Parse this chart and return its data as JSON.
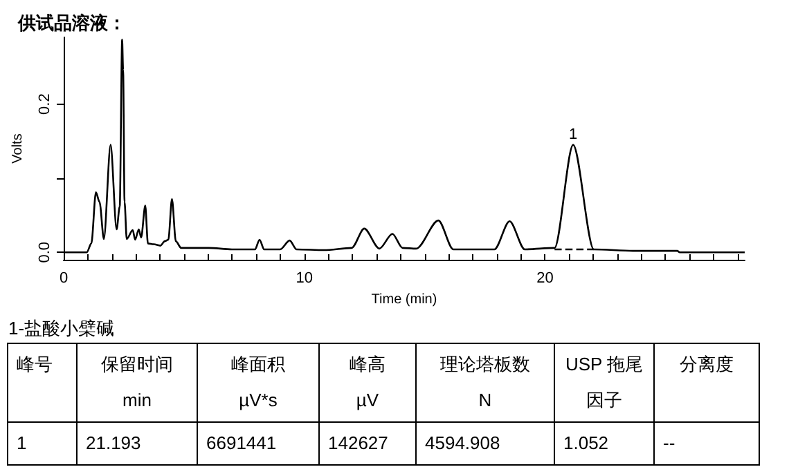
{
  "chart_data": {
    "type": "line",
    "title": "供试品溶液：",
    "xlabel": "Time (min)",
    "ylabel": "Volts",
    "xlim": [
      0,
      28.3
    ],
    "xticks": [
      0,
      {
        "value": 1,
        "label": null
      },
      {
        "value": 2,
        "label": null
      },
      {
        "value": 3,
        "label": null
      },
      {
        "value": 4,
        "label": null
      },
      {
        "value": 5,
        "label": null
      },
      {
        "value": 6,
        "label": null
      },
      {
        "value": 7,
        "label": null
      },
      {
        "value": 8,
        "label": null
      },
      {
        "value": 9,
        "label": null
      },
      10,
      {
        "value": 11,
        "label": null
      },
      {
        "value": 12,
        "label": null
      },
      {
        "value": 13,
        "label": null
      },
      {
        "value": 14,
        "label": null
      },
      {
        "value": 15,
        "label": null
      },
      {
        "value": 16,
        "label": null
      },
      {
        "value": 17,
        "label": null
      },
      {
        "value": 18,
        "label": null
      },
      {
        "value": 19,
        "label": null
      },
      20,
      {
        "value": 21,
        "label": null
      },
      {
        "value": 22,
        "label": null
      },
      {
        "value": 23,
        "label": null
      },
      {
        "value": 24,
        "label": null
      },
      {
        "value": 25,
        "label": null
      },
      {
        "value": 26,
        "label": null
      },
      {
        "value": 27,
        "label": null
      },
      {
        "value": 28,
        "label": null
      }
    ],
    "ylim": [
      -0.01,
      0.29
    ],
    "yticks": [
      {
        "value": 0,
        "label": "0.0"
      },
      {
        "value": 0.1,
        "label": null
      },
      {
        "value": 0.2,
        "label": "0.2"
      }
    ],
    "grid": false,
    "marker": "none",
    "series": [
      {
        "color": "#000000",
        "line_style": "solid",
        "x": [
          0,
          0.96,
          1.15,
          1.34,
          1.49,
          1.67,
          1.95,
          2.2,
          2.33,
          2.43,
          2.47,
          2.53,
          2.62,
          2.87,
          2.97,
          3.12,
          3.22,
          3.39,
          3.5,
          3.74,
          4.02,
          4.2,
          4.35,
          4.5,
          4.66,
          4.88,
          6.03,
          6.99,
          7.95,
          8.14,
          8.33,
          9.0,
          9.39,
          9.68,
          10.82,
          11.97,
          12.49,
          13.12,
          13.66,
          14.08,
          14.65,
          15.57,
          16.19,
          17.9,
          18.53,
          19.16,
          20.4,
          21.17,
          22.03,
          23.65,
          25.5,
          25.6,
          28.3
        ],
        "values": [
          0,
          0,
          0.012,
          0.081,
          0.068,
          0.018,
          0.145,
          0.031,
          0.062,
          0.287,
          0.246,
          0.068,
          0.018,
          0.03,
          0.017,
          0.031,
          0.02,
          0.063,
          0.012,
          0.011,
          0.009,
          0.015,
          0.017,
          0.072,
          0.015,
          0.006,
          0.006,
          0.004,
          0.004,
          0.017,
          0.004,
          0.004,
          0.016,
          0.004,
          0.003,
          0.006,
          0.032,
          0.005,
          0.025,
          0.006,
          0.005,
          0.043,
          0.004,
          0.004,
          0.042,
          0.004,
          0.006,
          0.145,
          0.004,
          0.002,
          0.002,
          0,
          0
        ]
      },
      {
        "color": "#000000",
        "line_style": "dashed",
        "x": [
          20.4,
          22.03
        ],
        "values": [
          0.004,
          0.004
        ]
      }
    ],
    "annotations": [
      {
        "text": "1",
        "x": 21.17,
        "y": 0.145
      },
      "1-盐酸小檗碱",
      "峰号",
      "保留时间\nmin",
      "峰面积\nµV*s",
      "峰高\nµV",
      "理论塔板数\nN",
      "USP 拖尾因子",
      "分离度",
      "1",
      "21.193",
      "6691441",
      "142627",
      "4594.908",
      "1.052",
      "--"
    ]
  }
}
